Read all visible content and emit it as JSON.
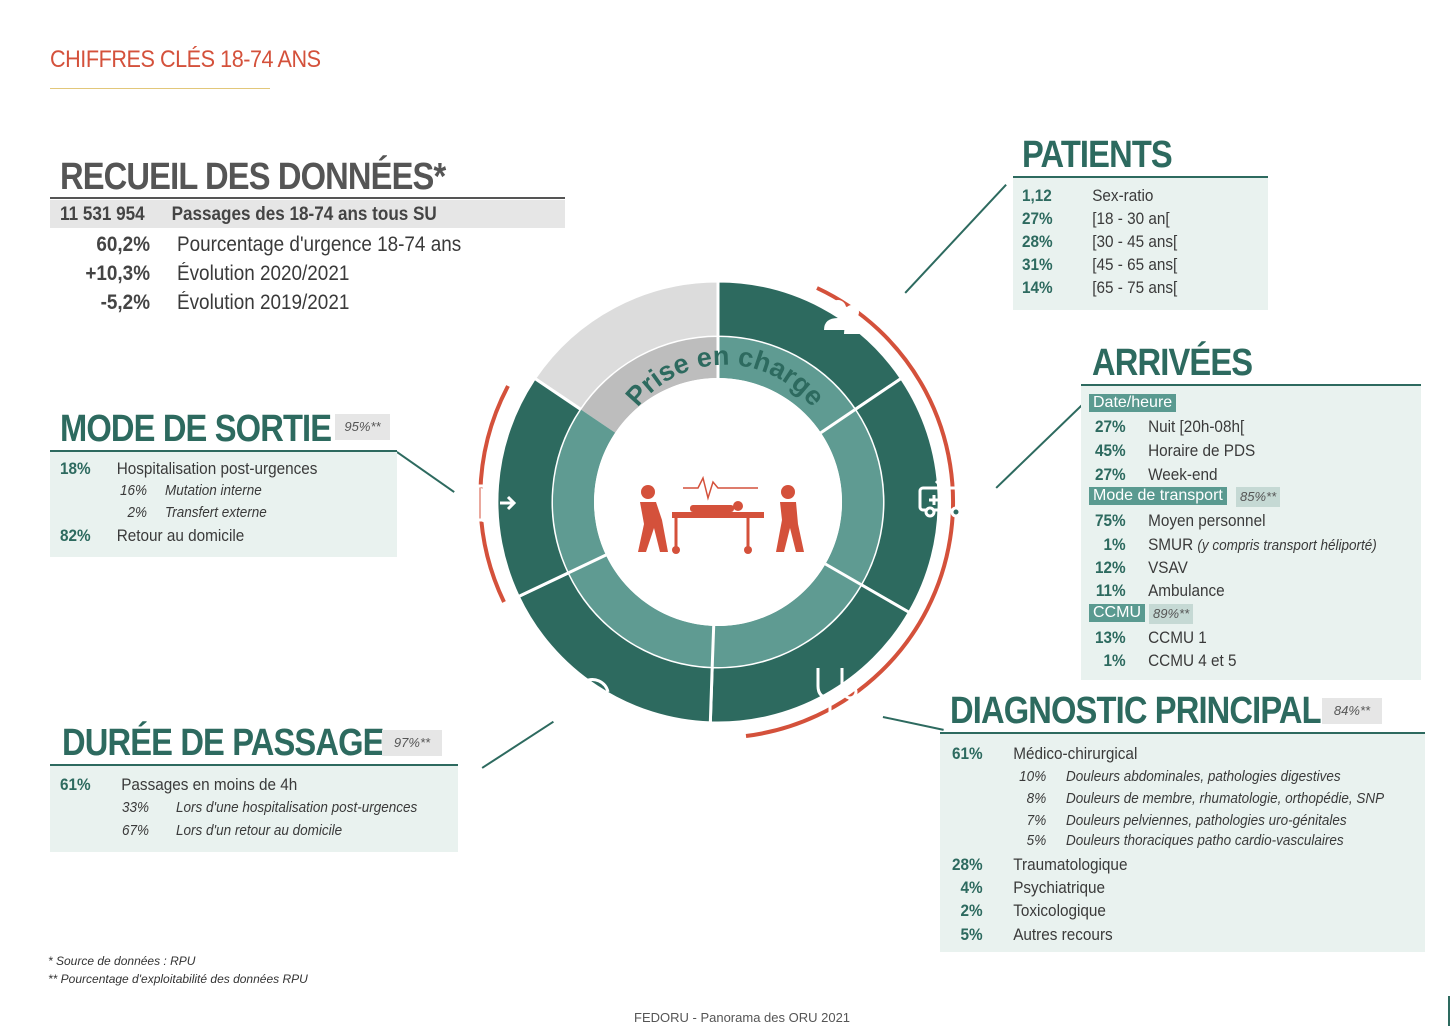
{
  "header": {
    "title": "CHIFFRES CLÉS 18-74 ANS"
  },
  "recueil": {
    "title": "RECUEIL DES DONNÉES*",
    "rows": [
      {
        "value": "11 531 954",
        "label": "Passages des 18-74 ans tous SU"
      },
      {
        "value": "60,2%",
        "label": "Pourcentage d'urgence 18-74 ans"
      },
      {
        "value": "+10,3%",
        "label": "Évolution 2020/2021"
      },
      {
        "value": "-5,2%",
        "label": "Évolution 2019/2021"
      }
    ]
  },
  "patients": {
    "title": "PATIENTS",
    "rows": [
      {
        "value": "1,12",
        "label": "Sex-ratio"
      },
      {
        "value": "27%",
        "label": "[18 - 30 an["
      },
      {
        "value": "28%",
        "label": "[30 - 45 ans["
      },
      {
        "value": "31%",
        "label": "[45 - 65 ans["
      },
      {
        "value": "14%",
        "label": "[65 - 75 ans["
      }
    ]
  },
  "sortie": {
    "title": "MODE DE SORTIE",
    "badge": "95%**",
    "r1": {
      "value": "18%",
      "label": "Hospitalisation post-urgences"
    },
    "s1": {
      "value": "16%",
      "label": "Mutation interne"
    },
    "s2": {
      "value": "2%",
      "label": "Transfert externe"
    },
    "r2": {
      "value": "82%",
      "label": "Retour au domicile"
    }
  },
  "arrivees": {
    "title": "ARRIVÉES",
    "tag_date": "Date/heure",
    "date_rows": [
      {
        "value": "27%",
        "label": "Nuit [20h-08h["
      },
      {
        "value": "45%",
        "label": "Horaire de PDS"
      },
      {
        "value": "27%",
        "label": "Week-end"
      }
    ],
    "tag_transport": "Mode de transport",
    "badge_transport": "85%**",
    "transport_rows": [
      {
        "value": "75%",
        "label": "Moyen personnel",
        "note": ""
      },
      {
        "value": "1%",
        "label": "SMUR",
        "note": "(y compris transport héliporté)"
      },
      {
        "value": "12%",
        "label": "VSAV",
        "note": ""
      },
      {
        "value": "11%",
        "label": "Ambulance",
        "note": ""
      }
    ],
    "tag_ccmu": "CCMU",
    "badge_ccmu": "89%**",
    "ccmu_rows": [
      {
        "value": "13%",
        "label": "CCMU 1"
      },
      {
        "value": "1%",
        "label": "CCMU 4 et 5"
      }
    ]
  },
  "duree": {
    "title": "DURÉE DE PASSAGE",
    "badge": "97%**",
    "r1": {
      "value": "61%",
      "label": "Passages en moins de 4h"
    },
    "s1": {
      "value": "33%",
      "label": "Lors d'une hospitalisation post-urgences"
    },
    "s2": {
      "value": "67%",
      "label": "Lors d'un retour au domicile"
    }
  },
  "diagnostic": {
    "title": "DIAGNOSTIC PRINCIPAL",
    "badge": "84%**",
    "r1": {
      "value": "61%",
      "label": "Médico-chirurgical"
    },
    "subs": [
      {
        "value": "10%",
        "label": "Douleurs abdominales, pathologies digestives"
      },
      {
        "value": "8%",
        "label": "Douleurs de membre, rhumatologie, orthopédie, SNP"
      },
      {
        "value": "7%",
        "label": "Douleurs pelviennes, pathologies uro-génitales"
      },
      {
        "value": "5%",
        "label": "Douleurs thoraciques patho cardio-vasculaires"
      }
    ],
    "rows": [
      {
        "value": "28%",
        "label": "Traumatologique"
      },
      {
        "value": "4%",
        "label": "Psychiatrique"
      },
      {
        "value": "2%",
        "label": "Toxicologique"
      },
      {
        "value": "5%",
        "label": "Autres recours"
      }
    ]
  },
  "center": {
    "label": "Prise en charge"
  },
  "notes": {
    "n1": "* Source de données : RPU",
    "n2": "** Pourcentage d'exploitabilité des données RPU"
  },
  "footer": {
    "text": "FEDORU  - Panorama des ORU 2021"
  },
  "colors": {
    "teal": "#2d6a5f",
    "teal_light": "#5f9b92",
    "accent": "#d4513b",
    "grey": "#dcdcdc",
    "box_bg": "#e9f2ef"
  }
}
